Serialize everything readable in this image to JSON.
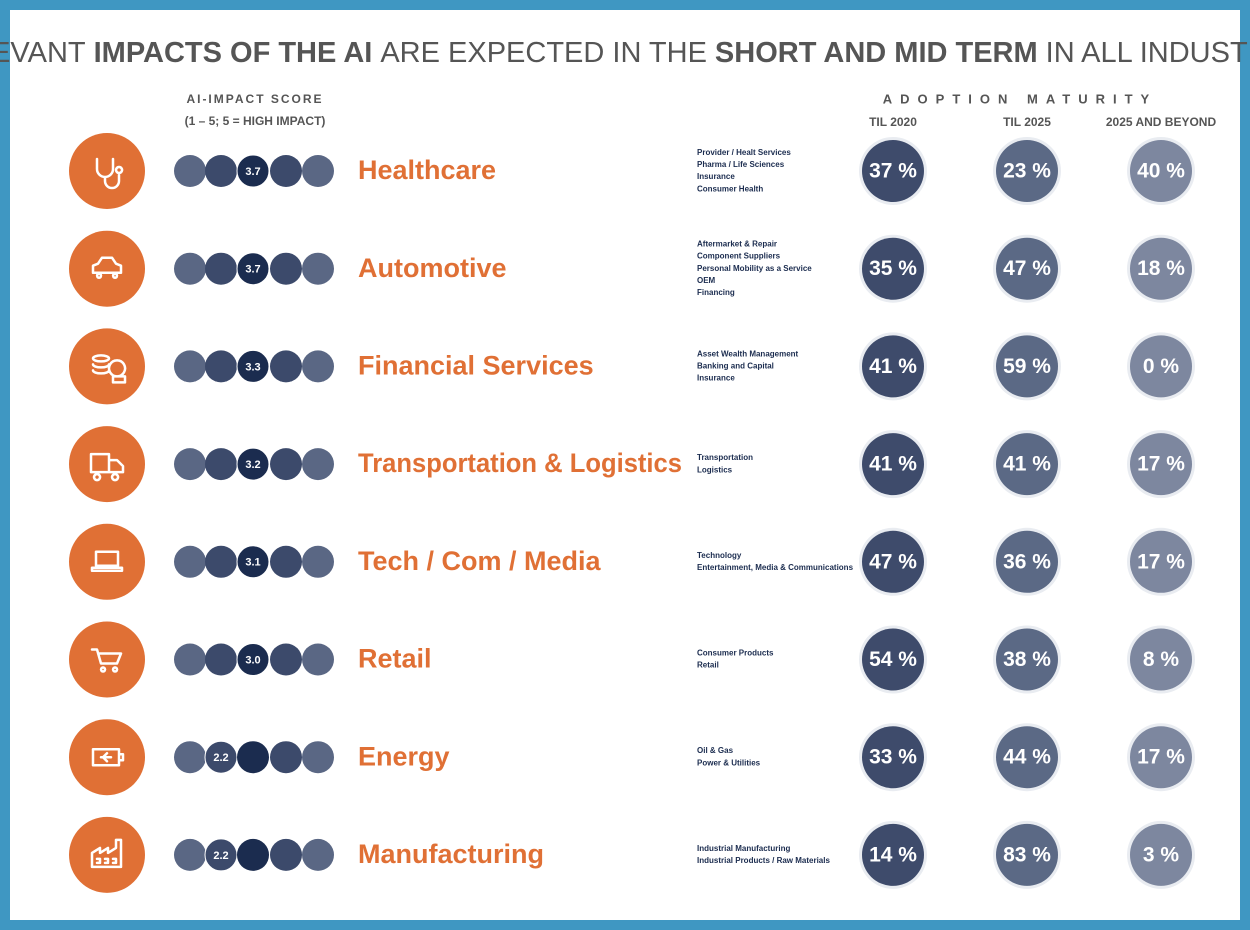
{
  "title_parts": [
    {
      "text": "RELEVANT",
      "bold": false
    },
    {
      "text": "IMPACTS OF THE AI",
      "bold": true
    },
    {
      "text": "ARE EXPECTED IN THE",
      "bold": false
    },
    {
      "text": "SHORT AND MID TERM",
      "bold": true
    },
    {
      "text": "IN ALL INDUSTRIES",
      "bold": false
    }
  ],
  "score_header": {
    "title": "AI-IMPACT SCORE",
    "scale": "(1 – 5;   5 = HIGH IMPACT)"
  },
  "adoption_header": {
    "title": "ADOPTION MATURITY",
    "columns": [
      "TIL 2020",
      "TIL 2025",
      "2025 AND BEYOND"
    ]
  },
  "rows": [
    {
      "name": "Healthcare",
      "score": 3.7,
      "items": [
        "Provider / Healt Services",
        "Pharma / Life Sciences",
        "Insurance",
        "Consumer Health"
      ],
      "adoption": {
        "values": [
          37,
          23,
          40
        ],
        "value_labels": [
          "37 %",
          "23 %",
          "40 %"
        ]
      }
    },
    {
      "name": "Automotive",
      "score": 3.7,
      "items": [
        "Aftermarket & Repair",
        "Component Suppliers",
        "Personal Mobility as a Service",
        "OEM",
        "Financing"
      ],
      "adoption": {
        "values": [
          35,
          47,
          18
        ],
        "value_labels": [
          "35 %",
          "47 %",
          "18 %"
        ]
      }
    },
    {
      "name": "Financial Services",
      "score": 3.3,
      "items": [
        "Asset Wealth Management",
        "Banking and Capital",
        "Insurance"
      ],
      "adoption": {
        "values": [
          41,
          59,
          0
        ],
        "value_labels": [
          "41 %",
          "59 %",
          "0 %"
        ]
      }
    },
    {
      "name": "Transportation & Logistics",
      "score": 3.2,
      "items": [
        "Transportation",
        "Logistics"
      ],
      "adoption": {
        "values": [
          41,
          41,
          17
        ],
        "value_labels": [
          "41 %",
          "41 %",
          "17 %"
        ]
      }
    },
    {
      "name": "Tech / Com / Media",
      "score": 3.1,
      "items": [
        "Technology",
        "Entertainment, Media & Communications"
      ],
      "adoption": {
        "values": [
          47,
          36,
          17
        ],
        "value_labels": [
          "47 %",
          "36 %",
          "17 %"
        ]
      }
    },
    {
      "name": "Retail",
      "score": {
        "value": 3,
        "label": "3.0"
      },
      "items": [
        "Consumer Products",
        "Retail"
      ],
      "adoption": {
        "values": [
          54,
          38,
          8
        ],
        "value_labels": [
          "54 %",
          "38 %",
          "8 %"
        ]
      }
    },
    {
      "name": "Energy",
      "score": 2.2,
      "items": [
        "Oil & Gas",
        "Power & Utilities"
      ],
      "adoption": {
        "values": [
          33,
          44,
          17
        ],
        "value_labels": [
          "33 %",
          "44 %",
          "17 %"
        ]
      }
    },
    {
      "name": "Manufacturing",
      "score": 2.2,
      "items": [
        "Industrial Manufacturing",
        "Industrial Products / Raw Materials"
      ],
      "adoption": {
        "values": [
          14,
          83,
          3
        ],
        "value_labels": [
          "14 %",
          "83 %",
          "3 %"
        ]
      }
    }
  ]
}
